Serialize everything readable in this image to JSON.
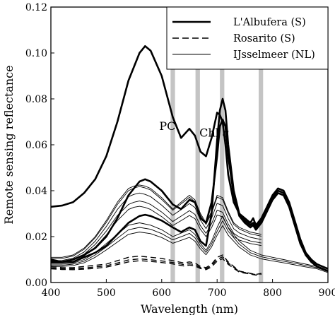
{
  "chart_data": {
    "type": "line",
    "xlabel": "Wavelength (nm)",
    "ylabel": "Remote sensing reflectance",
    "xlim": [
      400,
      900
    ],
    "ylim": [
      0,
      0.12
    ],
    "x_ticks": [
      {
        "value": 400,
        "label": "400"
      },
      {
        "value": 500,
        "label": "500"
      },
      {
        "value": 600,
        "label": "600"
      },
      {
        "value": 700,
        "label": "700"
      },
      {
        "value": 800,
        "label": "800"
      },
      {
        "value": 900,
        "label": "900"
      }
    ],
    "y_ticks": [
      {
        "value": 0,
        "label": "0.00"
      },
      {
        "value": 0.02,
        "label": "0.02"
      },
      {
        "value": 0.04,
        "label": "0.04"
      },
      {
        "value": 0.06,
        "label": "0.06"
      },
      {
        "value": 0.08,
        "label": "0.08"
      },
      {
        "value": 0.1,
        "label": "0.10"
      },
      {
        "value": 0.12,
        "label": "0.12"
      }
    ],
    "grid": false,
    "legend_position": "top-right",
    "bands": [
      {
        "from": 616,
        "to": 624
      },
      {
        "from": 661,
        "to": 669
      },
      {
        "from": 705,
        "to": 713
      },
      {
        "from": 775,
        "to": 783
      }
    ],
    "annotations": [
      {
        "text": "PC",
        "x": 625,
        "y": 0.0665,
        "anchor": "end"
      },
      {
        "text": "Chl",
        "italic": "a",
        "x": 668,
        "y": 0.0635,
        "anchor": "start"
      }
    ],
    "legend": [
      {
        "label": "L'Albufera (S)",
        "style": "thick"
      },
      {
        "label": "Rosarito (S)",
        "style": "dashed"
      },
      {
        "label": "IJsselmeer (NL)",
        "style": "thin"
      }
    ],
    "series": [
      {
        "legend_index": 0,
        "style": "thick",
        "x": [
          400,
          420,
          440,
          460,
          480,
          500,
          520,
          540,
          560,
          570,
          580,
          600,
          620,
          635,
          650,
          660,
          670,
          680,
          690,
          700,
          705,
          710,
          715,
          720,
          730,
          740,
          750,
          760,
          765,
          770,
          780,
          790,
          800,
          810,
          820,
          830,
          840,
          850,
          860,
          870,
          880,
          890,
          900
        ],
        "y": [
          0.033,
          0.0335,
          0.035,
          0.039,
          0.045,
          0.055,
          0.07,
          0.088,
          0.1,
          0.103,
          0.101,
          0.09,
          0.072,
          0.063,
          0.067,
          0.064,
          0.057,
          0.055,
          0.063,
          0.074,
          0.073,
          0.07,
          0.06,
          0.047,
          0.035,
          0.03,
          0.028,
          0.026,
          0.028,
          0.025,
          0.028,
          0.033,
          0.038,
          0.041,
          0.04,
          0.035,
          0.027,
          0.019,
          0.013,
          0.01,
          0.008,
          0.007,
          0.006
        ]
      },
      {
        "legend_index": 0,
        "style": "thick",
        "x": [
          400,
          420,
          440,
          460,
          480,
          500,
          520,
          540,
          560,
          570,
          580,
          600,
          620,
          635,
          650,
          660,
          670,
          680,
          690,
          700,
          705,
          710,
          715,
          720,
          730,
          740,
          750,
          760,
          765,
          770,
          780,
          790,
          800,
          810,
          820,
          830,
          840,
          850,
          860,
          870,
          880,
          890,
          900
        ],
        "y": [
          0.01,
          0.009,
          0.009,
          0.011,
          0.013,
          0.016,
          0.021,
          0.026,
          0.029,
          0.0295,
          0.029,
          0.027,
          0.024,
          0.022,
          0.024,
          0.023,
          0.018,
          0.016,
          0.03,
          0.062,
          0.075,
          0.08,
          0.075,
          0.06,
          0.04,
          0.03,
          0.027,
          0.025,
          0.026,
          0.024,
          0.027,
          0.032,
          0.037,
          0.04,
          0.039,
          0.034,
          0.026,
          0.018,
          0.012,
          0.009,
          0.007,
          0.006,
          0.005
        ]
      },
      {
        "legend_index": 0,
        "style": "thick",
        "x": [
          400,
          420,
          440,
          460,
          480,
          500,
          520,
          540,
          560,
          570,
          580,
          600,
          620,
          635,
          650,
          660,
          670,
          680,
          690,
          700,
          705,
          710,
          715,
          720,
          730,
          740,
          750,
          760,
          765,
          770,
          780,
          790,
          800,
          810,
          820,
          830,
          840,
          850,
          860,
          870,
          880,
          890,
          900
        ],
        "y": [
          0.009,
          0.009,
          0.01,
          0.012,
          0.015,
          0.02,
          0.028,
          0.038,
          0.044,
          0.045,
          0.044,
          0.04,
          0.034,
          0.032,
          0.036,
          0.035,
          0.028,
          0.026,
          0.035,
          0.055,
          0.068,
          0.071,
          0.068,
          0.055,
          0.038,
          0.029,
          0.026,
          0.024,
          0.025,
          0.023,
          0.026,
          0.031,
          0.036,
          0.039,
          0.038,
          0.033,
          0.025,
          0.017,
          0.012,
          0.009,
          0.007,
          0.006,
          0.005
        ]
      },
      {
        "legend_index": 1,
        "style": "dashed",
        "x": [
          400,
          420,
          440,
          460,
          480,
          500,
          520,
          540,
          560,
          580,
          600,
          620,
          640,
          650,
          660,
          670,
          680,
          690,
          700,
          710,
          720,
          740,
          760,
          770,
          780
        ],
        "y": [
          0.007,
          0.0065,
          0.0065,
          0.007,
          0.0075,
          0.008,
          0.0095,
          0.011,
          0.0115,
          0.011,
          0.0105,
          0.0095,
          0.0085,
          0.009,
          0.0085,
          0.007,
          0.0065,
          0.008,
          0.011,
          0.012,
          0.009,
          0.005,
          0.004,
          0.0035,
          0.004
        ]
      },
      {
        "style": "dashed",
        "x": [
          400,
          420,
          440,
          460,
          480,
          500,
          520,
          540,
          560,
          580,
          600,
          620,
          640,
          650,
          660,
          670,
          680,
          690,
          700,
          710,
          720,
          740,
          760,
          770,
          780
        ],
        "y": [
          0.0065,
          0.006,
          0.006,
          0.0063,
          0.0068,
          0.0073,
          0.0085,
          0.0098,
          0.0103,
          0.0099,
          0.0094,
          0.0087,
          0.0078,
          0.0082,
          0.0078,
          0.0065,
          0.006,
          0.0074,
          0.0101,
          0.0112,
          0.0085,
          0.0048,
          0.0039,
          0.0034,
          0.0038
        ]
      },
      {
        "style": "dashed",
        "x": [
          400,
          420,
          440,
          460,
          480,
          500,
          520,
          540,
          560,
          580,
          600,
          620,
          640,
          650,
          660,
          670,
          680,
          690,
          700,
          710,
          720,
          740,
          760,
          770,
          780
        ],
        "y": [
          0.006,
          0.0057,
          0.0056,
          0.0058,
          0.0062,
          0.0067,
          0.0078,
          0.009,
          0.0095,
          0.0092,
          0.0087,
          0.0081,
          0.0072,
          0.0076,
          0.0072,
          0.0061,
          0.0056,
          0.0068,
          0.0093,
          0.0104,
          0.0079,
          0.0045,
          0.0037,
          0.0032,
          0.0036
        ]
      },
      {
        "legend_index": 2,
        "style": "thin",
        "x": [
          400,
          420,
          440,
          460,
          480,
          500,
          520,
          540,
          550,
          560,
          570,
          580,
          600,
          620,
          640,
          650,
          660,
          670,
          680,
          690,
          700,
          710,
          720,
          730,
          740,
          760,
          780
        ],
        "y": [
          0.011,
          0.011,
          0.012,
          0.015,
          0.02,
          0.027,
          0.035,
          0.041,
          0.042,
          0.0425,
          0.042,
          0.041,
          0.037,
          0.032,
          0.036,
          0.038,
          0.036,
          0.03,
          0.026,
          0.031,
          0.038,
          0.037,
          0.031,
          0.026,
          0.024,
          0.022,
          0.021
        ]
      },
      {
        "style": "thin",
        "x": [
          400,
          420,
          440,
          460,
          480,
          500,
          520,
          540,
          550,
          560,
          570,
          580,
          600,
          620,
          640,
          650,
          660,
          670,
          680,
          690,
          700,
          710,
          720,
          730,
          740,
          760,
          780
        ],
        "y": [
          0.0105,
          0.0105,
          0.0115,
          0.0145,
          0.0195,
          0.0262,
          0.034,
          0.04,
          0.0412,
          0.0418,
          0.0412,
          0.0403,
          0.0362,
          0.0315,
          0.0352,
          0.0371,
          0.0352,
          0.0292,
          0.0253,
          0.0302,
          0.0372,
          0.0362,
          0.0302,
          0.0253,
          0.0233,
          0.0212,
          0.0202
        ]
      },
      {
        "style": "thin",
        "x": [
          400,
          420,
          440,
          460,
          480,
          500,
          520,
          540,
          550,
          560,
          570,
          580,
          600,
          620,
          640,
          650,
          660,
          670,
          680,
          690,
          700,
          710,
          720,
          730,
          740,
          760,
          780
        ],
        "y": [
          0.0095,
          0.0096,
          0.0106,
          0.0133,
          0.018,
          0.0244,
          0.0318,
          0.0374,
          0.0384,
          0.039,
          0.0384,
          0.0374,
          0.0337,
          0.0293,
          0.0326,
          0.0344,
          0.0327,
          0.0271,
          0.0235,
          0.028,
          0.0345,
          0.0335,
          0.0279,
          0.0234,
          0.0216,
          0.0197,
          0.0187
        ]
      },
      {
        "style": "thin",
        "x": [
          400,
          420,
          440,
          460,
          480,
          500,
          520,
          540,
          550,
          560,
          570,
          580,
          600,
          620,
          640,
          650,
          660,
          670,
          680,
          690,
          700,
          710,
          720,
          730,
          740,
          760,
          780
        ],
        "y": [
          0.009,
          0.009,
          0.0098,
          0.0123,
          0.0166,
          0.0224,
          0.0292,
          0.034,
          0.035,
          0.0355,
          0.035,
          0.034,
          0.0307,
          0.0266,
          0.0297,
          0.0313,
          0.0297,
          0.0247,
          0.0214,
          0.0256,
          0.0315,
          0.0306,
          0.0255,
          0.0214,
          0.0198,
          0.0181,
          0.0172
        ]
      },
      {
        "style": "thin",
        "x": [
          400,
          420,
          440,
          460,
          480,
          500,
          520,
          540,
          550,
          560,
          570,
          580,
          600,
          620,
          640,
          650,
          660,
          670,
          680,
          690,
          700,
          710,
          720,
          730,
          740,
          760,
          780
        ],
        "y": [
          0.0085,
          0.0085,
          0.0092,
          0.0115,
          0.0154,
          0.0207,
          0.027,
          0.0318,
          0.0328,
          0.0332,
          0.0327,
          0.0318,
          0.0287,
          0.0248,
          0.0277,
          0.0292,
          0.0278,
          0.0231,
          0.02,
          0.0239,
          0.0294,
          0.0286,
          0.0238,
          0.02,
          0.0185,
          0.017,
          0.0161
        ]
      },
      {
        "style": "thin",
        "x": [
          400,
          420,
          440,
          460,
          480,
          500,
          520,
          540,
          560,
          580,
          600,
          620,
          640,
          650,
          660,
          670,
          680,
          690,
          700,
          710,
          720,
          740,
          760,
          780,
          800,
          820,
          840,
          860,
          880,
          900
        ],
        "y": [
          0.008,
          0.008,
          0.0085,
          0.01,
          0.013,
          0.017,
          0.021,
          0.025,
          0.026,
          0.025,
          0.023,
          0.02,
          0.022,
          0.023,
          0.021,
          0.017,
          0.014,
          0.018,
          0.024,
          0.029,
          0.024,
          0.018,
          0.014,
          0.012,
          0.011,
          0.01,
          0.009,
          0.008,
          0.007,
          0.005
        ]
      },
      {
        "style": "thin",
        "x": [
          400,
          420,
          440,
          460,
          480,
          500,
          520,
          540,
          560,
          580,
          600,
          620,
          640,
          650,
          660,
          670,
          680,
          690,
          700,
          710,
          720,
          740,
          760,
          780,
          800,
          820,
          840,
          860,
          880,
          900
        ],
        "y": [
          0.0075,
          0.0075,
          0.008,
          0.0093,
          0.012,
          0.0155,
          0.0193,
          0.023,
          0.024,
          0.0232,
          0.0213,
          0.0186,
          0.0204,
          0.0214,
          0.0195,
          0.0158,
          0.0131,
          0.0168,
          0.0223,
          0.0269,
          0.0223,
          0.0167,
          0.013,
          0.0112,
          0.0102,
          0.0093,
          0.0084,
          0.0074,
          0.0065,
          0.0047
        ]
      },
      {
        "style": "thin",
        "x": [
          400,
          420,
          440,
          460,
          480,
          500,
          520,
          540,
          560,
          580,
          600,
          620,
          640,
          650,
          660,
          670,
          680,
          690,
          700,
          710,
          720,
          740,
          760,
          780,
          800,
          820,
          840,
          860,
          880,
          900
        ],
        "y": [
          0.007,
          0.007,
          0.0074,
          0.0086,
          0.011,
          0.0142,
          0.0176,
          0.021,
          0.022,
          0.0213,
          0.0196,
          0.0171,
          0.0188,
          0.0197,
          0.018,
          0.0146,
          0.0121,
          0.0155,
          0.0206,
          0.0248,
          0.0206,
          0.0154,
          0.012,
          0.0103,
          0.0094,
          0.0086,
          0.0077,
          0.0068,
          0.006,
          0.0043
        ]
      }
    ]
  }
}
